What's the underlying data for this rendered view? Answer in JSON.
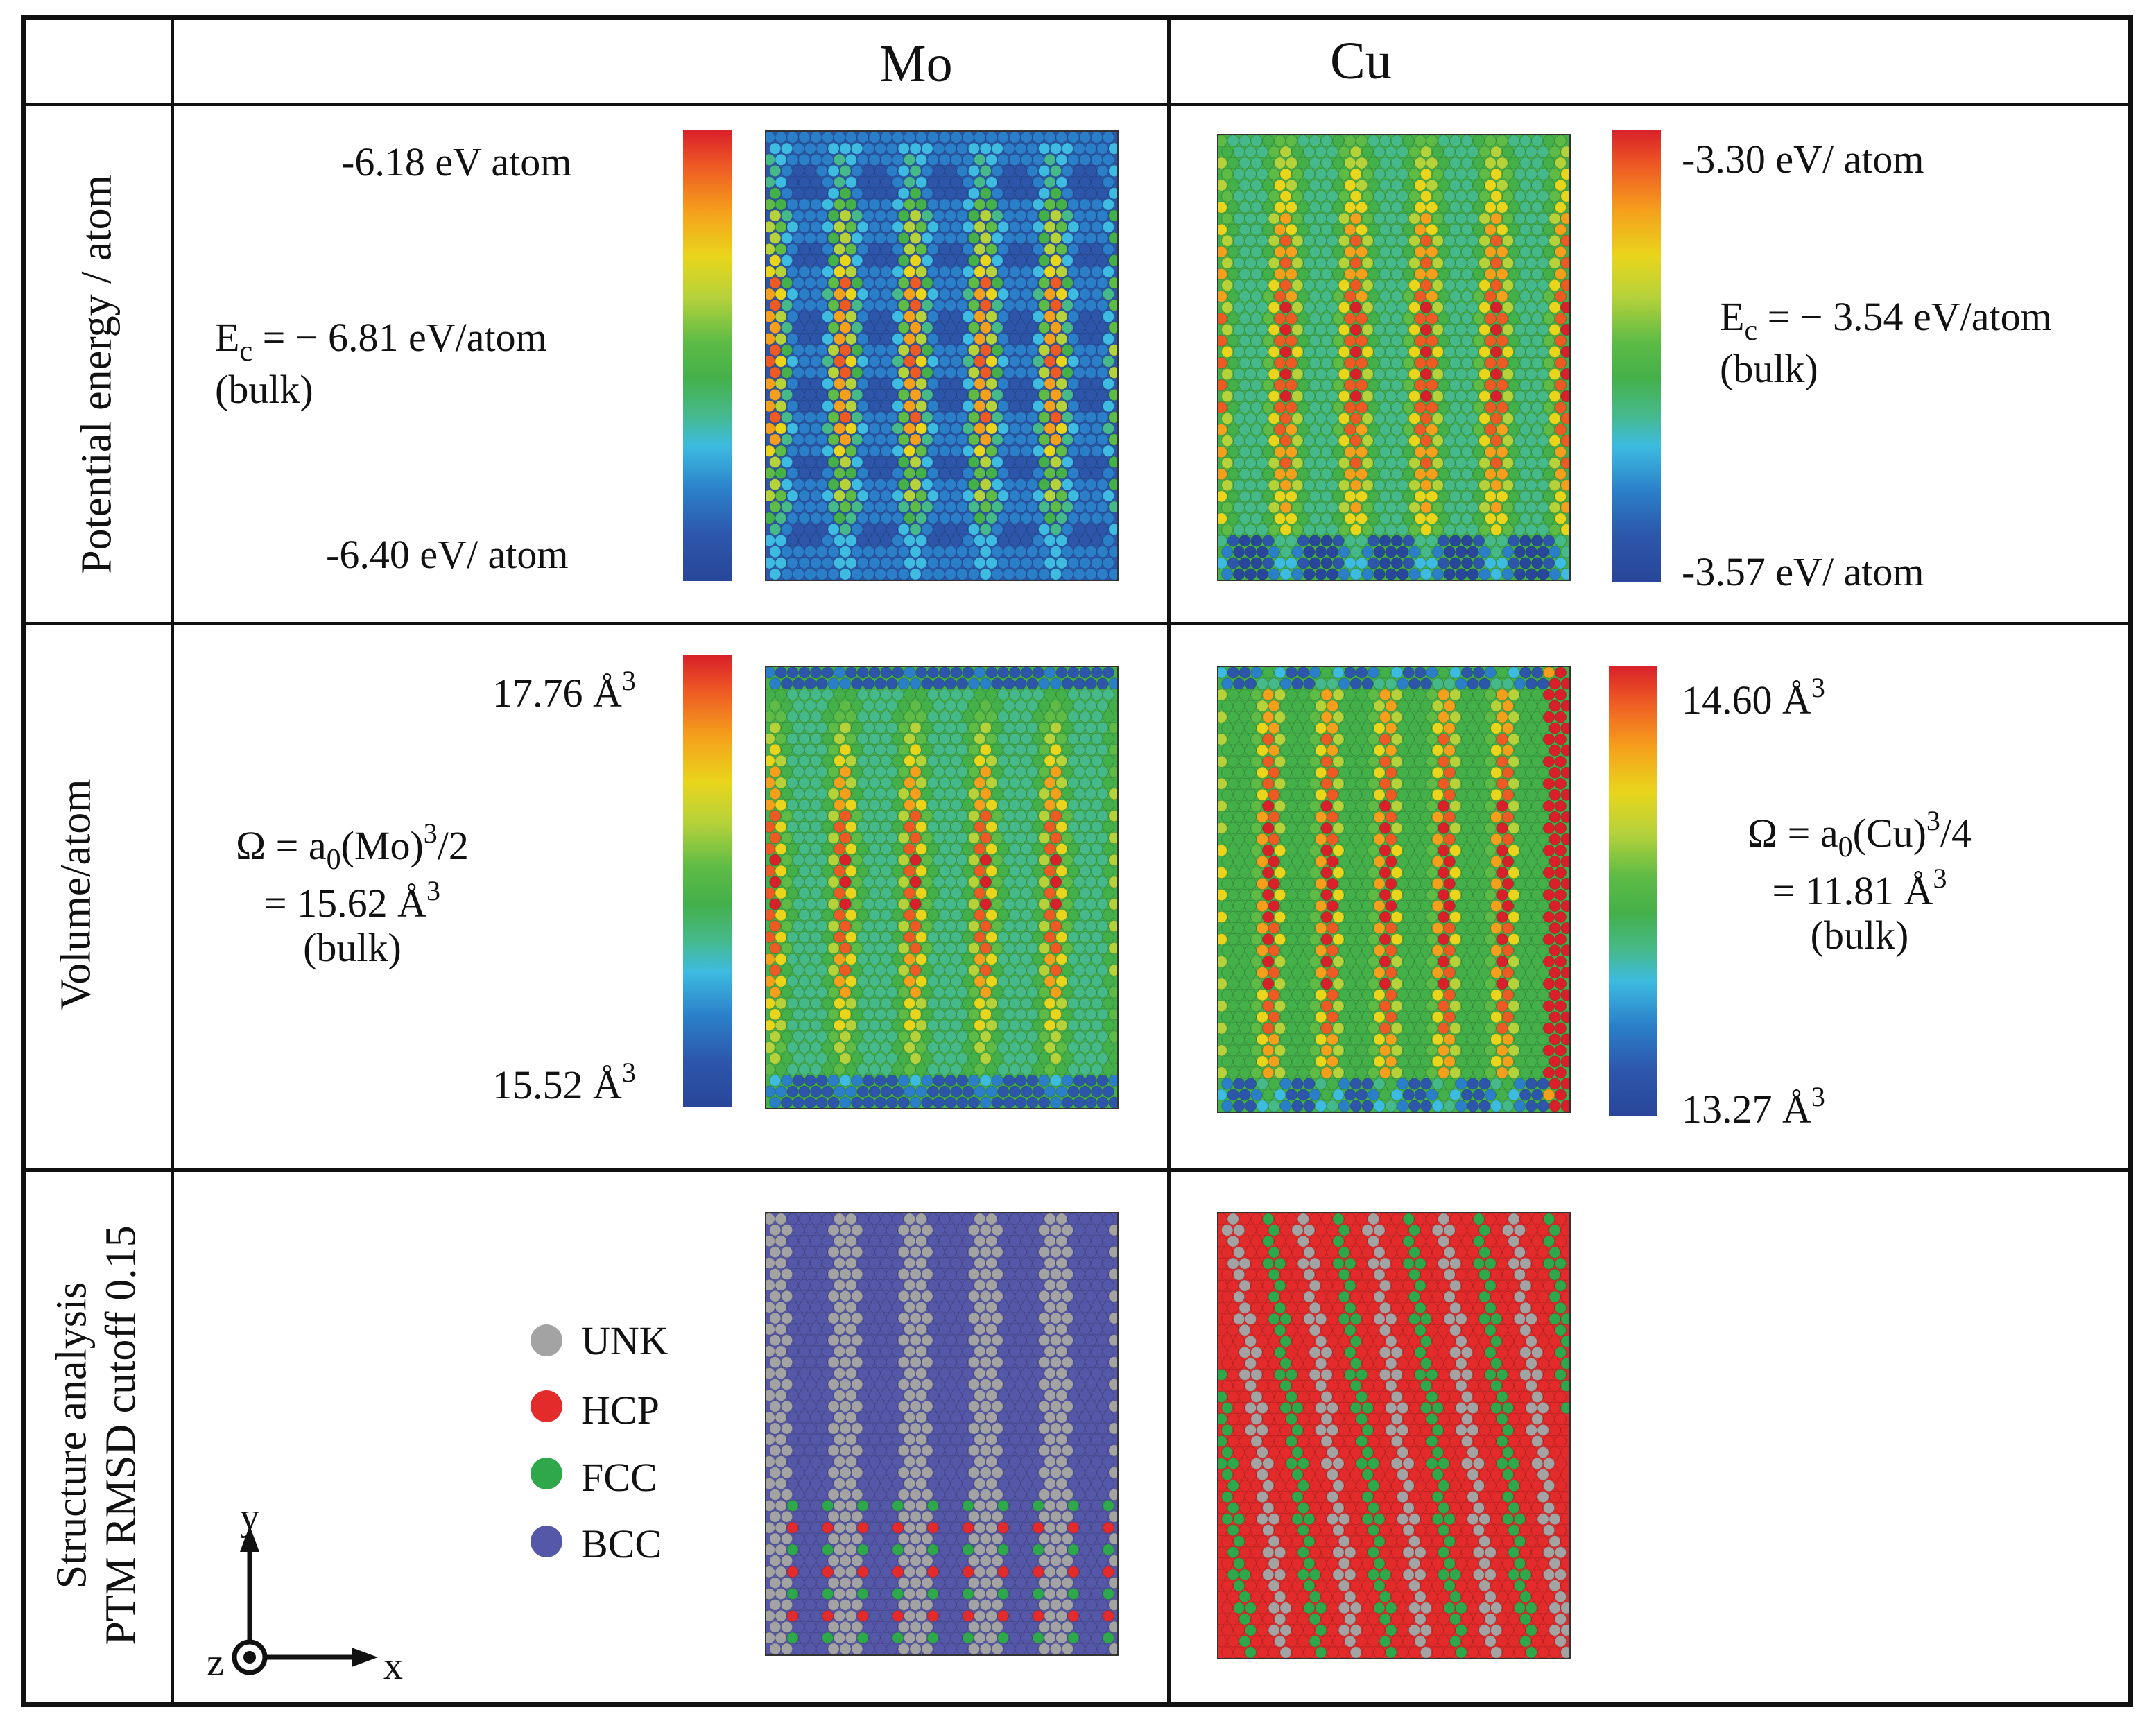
{
  "columns": {
    "mo": "Mo",
    "cu": "Cu"
  },
  "rows": {
    "potential": "Potential energy / atom",
    "volume": "Volume/atom",
    "structure_line1": "Structure analysis",
    "structure_line2": "PTM RMSD cutoff 0.15"
  },
  "potential_energy": {
    "mo": {
      "max_label": "-6.18 eV atom",
      "min_label": "-6.40 eV/ atom",
      "ec_symbol": "E",
      "ec_subscript": "c",
      "ec_value": " = − 6.81 eV/atom",
      "bulk": "(bulk)"
    },
    "cu": {
      "max_label": "-3.30 eV/ atom",
      "min_label": "-3.57 eV/ atom",
      "ec_symbol": "E",
      "ec_subscript": "c",
      "ec_value": " = − 3.54 eV/atom",
      "bulk": "(bulk)"
    }
  },
  "volume": {
    "mo": {
      "max_value": "17.76 Å",
      "min_value": "15.52 Å",
      "exponent": "3",
      "omega_prefix": "Ω =  a",
      "omega_sub": "0",
      "omega_mid": "(Mo)",
      "omega_exp": "3",
      "omega_tail": "/2",
      "value_line": "= 15.62 Å",
      "bulk": "(bulk)"
    },
    "cu": {
      "max_value": "14.60 Å",
      "min_value": "13.27 Å",
      "exponent": "3",
      "omega_prefix": "Ω  =  a",
      "omega_sub": "0",
      "omega_mid": "(Cu)",
      "omega_exp": "3",
      "omega_tail": "/4",
      "value_line": "= 11.81  Å",
      "bulk": "(bulk)"
    }
  },
  "legend": [
    {
      "label": "UNK",
      "color": "#a3a3a3"
    },
    {
      "label": "HCP",
      "color": "#e32b2b"
    },
    {
      "label": "FCC",
      "color": "#2ea84a"
    },
    {
      "label": "BCC",
      "color": "#5557a8"
    }
  ],
  "axes": {
    "x": "x",
    "y": "y",
    "z": "z"
  },
  "colormap": [
    "#28469a",
    "#2d56aa",
    "#2b7fc9",
    "#3dbbe0",
    "#46b98a",
    "#44b04a",
    "#5dbb46",
    "#b6d23a",
    "#e9d51c",
    "#f5a01c",
    "#ee5a24",
    "#d9202a"
  ]
}
